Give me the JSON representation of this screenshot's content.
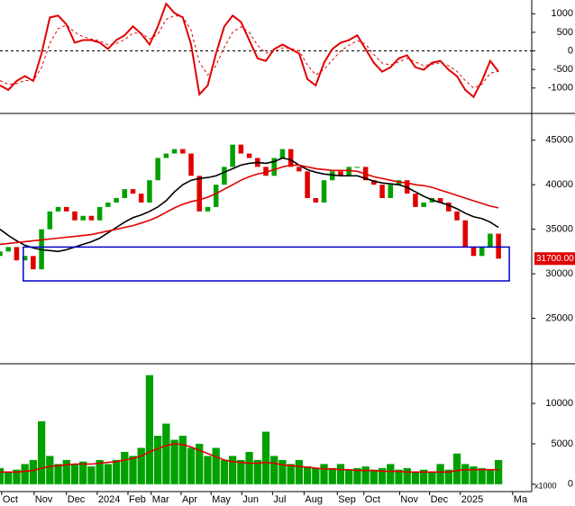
{
  "chart_data": [
    {
      "type": "line",
      "x": [
        0,
        1,
        2,
        3,
        4,
        5,
        6,
        7,
        8,
        9,
        10,
        11,
        12,
        13,
        14,
        15,
        16,
        17,
        18,
        19,
        20,
        21,
        22,
        23,
        24,
        25,
        26,
        27,
        28,
        29,
        30,
        31,
        32,
        33,
        34,
        35,
        36,
        37,
        38,
        39,
        40,
        41,
        42,
        43,
        44,
        45,
        46,
        47,
        48,
        49,
        50,
        51,
        52,
        53,
        54,
        55,
        56,
        57,
        58,
        59,
        60
      ],
      "series": [
        {
          "color": "#e00000",
          "style": "solid",
          "values": [
            -930,
            -1050,
            -810,
            -680,
            -810,
            -70,
            900,
            950,
            710,
            220,
            290,
            290,
            220,
            50,
            290,
            420,
            660,
            460,
            170,
            660,
            1270,
            1020,
            900,
            170,
            -1170,
            -930,
            -70,
            660,
            950,
            780,
            290,
            -200,
            -270,
            50,
            170,
            50,
            -70,
            -760,
            -930,
            -320,
            50,
            220,
            290,
            420,
            50,
            -320,
            -560,
            -440,
            -200,
            -120,
            -440,
            -510,
            -320,
            -270,
            -510,
            -680,
            -1050,
            -1240,
            -810,
            -270,
            -560
          ]
        },
        {
          "color": "#e00000",
          "style": "dashed",
          "values": [
            -800,
            -900,
            -880,
            -800,
            -800,
            -450,
            200,
            600,
            700,
            500,
            380,
            320,
            270,
            160,
            200,
            300,
            480,
            480,
            320,
            450,
            850,
            950,
            920,
            550,
            -300,
            -650,
            -400,
            100,
            500,
            650,
            500,
            150,
            -60,
            -20,
            80,
            70,
            0,
            -380,
            -650,
            -500,
            -250,
            0,
            150,
            280,
            180,
            -100,
            -330,
            -380,
            -300,
            -200,
            -300,
            -400,
            -360,
            -320,
            -400,
            -550,
            -800,
            -1000,
            -900,
            -600,
            -550
          ]
        }
      ],
      "xlim": [
        0,
        64
      ],
      "ylim": [
        -1660,
        1370
      ],
      "yticks": [
        1000,
        500,
        0,
        -500,
        -1000
      ],
      "reference_line": 0
    },
    {
      "type": "candlestick",
      "x": [
        0,
        1,
        2,
        3,
        4,
        5,
        6,
        7,
        8,
        9,
        10,
        11,
        12,
        13,
        14,
        15,
        16,
        17,
        18,
        19,
        20,
        21,
        22,
        23,
        24,
        25,
        26,
        27,
        28,
        29,
        30,
        31,
        32,
        33,
        34,
        35,
        36,
        37,
        38,
        39,
        40,
        41,
        42,
        43,
        44,
        45,
        46,
        47,
        48,
        49,
        50,
        51,
        52,
        53,
        54,
        55,
        56,
        57,
        58,
        59,
        60
      ],
      "open": [
        32000,
        32500,
        33000,
        31500,
        32000,
        30500,
        35000,
        37000,
        37500,
        37000,
        36000,
        36500,
        36000,
        37500,
        38000,
        38500,
        39500,
        39000,
        38000,
        40500,
        43000,
        43500,
        44000,
        43500,
        41000,
        37000,
        37500,
        40000,
        42000,
        44500,
        43500,
        43000,
        42000,
        41000,
        43000,
        44000,
        42000,
        41500,
        38500,
        38000,
        40500,
        41500,
        41000,
        42000,
        42000,
        40500,
        40000,
        38500,
        40000,
        40500,
        39000,
        37500,
        38000,
        38500,
        38000,
        37000,
        36000,
        33000,
        32000,
        33000,
        34500
      ],
      "close": [
        32500,
        33000,
        31500,
        32000,
        30500,
        35000,
        37000,
        37500,
        37000,
        36000,
        36500,
        36000,
        37500,
        38000,
        38500,
        39500,
        39000,
        38000,
        40500,
        43000,
        43500,
        44000,
        43500,
        41000,
        37000,
        37500,
        40000,
        42000,
        44500,
        43500,
        43000,
        42000,
        41000,
        43000,
        44000,
        42000,
        41500,
        38500,
        38000,
        40500,
        41500,
        41000,
        42000,
        42000,
        40500,
        40000,
        38500,
        40000,
        40500,
        39000,
        37500,
        38000,
        38500,
        38000,
        37000,
        36000,
        33000,
        32000,
        33000,
        34500,
        31700
      ],
      "up_color": "#00a000",
      "down_color": "#e00000",
      "series": [
        {
          "color": "#000000",
          "values": [
            35000,
            34300,
            33700,
            33200,
            32900,
            32700,
            32600,
            32500,
            32700,
            33000,
            33300,
            33600,
            34000,
            34600,
            35200,
            35800,
            36300,
            36600,
            37000,
            37500,
            38200,
            39200,
            40000,
            40500,
            40700,
            40800,
            41000,
            41400,
            41800,
            42200,
            42400,
            42500,
            42400,
            42600,
            43000,
            42800,
            42200,
            41700,
            41400,
            41200,
            41100,
            41000,
            41000,
            41000,
            40700,
            40400,
            40200,
            40100,
            40000,
            39700,
            39200,
            38700,
            38300,
            38000,
            37700,
            37300,
            36800,
            36400,
            36200,
            35800,
            35200
          ]
        },
        {
          "color": "#e00000",
          "values": [
            33300,
            33400,
            33500,
            33600,
            33700,
            33800,
            33900,
            34000,
            34100,
            34200,
            34300,
            34400,
            34600,
            34800,
            35000,
            35200,
            35400,
            35700,
            36000,
            36400,
            36900,
            37400,
            37800,
            38100,
            38300,
            38600,
            39000,
            39500,
            40000,
            40500,
            40900,
            41200,
            41400,
            41700,
            42000,
            42200,
            42200,
            42000,
            41800,
            41700,
            41600,
            41600,
            41600,
            41500,
            41200,
            40900,
            40700,
            40500,
            40300,
            40200,
            40000,
            39900,
            39700,
            39400,
            39100,
            38800,
            38500,
            38200,
            37900,
            37600,
            37400
          ]
        }
      ],
      "xlim": [
        0,
        64
      ],
      "ylim": [
        20100,
        47900
      ],
      "yticks": [
        45000,
        40000,
        35000,
        30000,
        25000
      ],
      "box": {
        "x": [
          2.8,
          61.3
        ],
        "y": [
          29200,
          33000
        ],
        "color": "#0000cc"
      },
      "last_label": {
        "value": 31700,
        "label": "31700.00"
      }
    },
    {
      "type": "bar",
      "x": [
        0,
        1,
        2,
        3,
        4,
        5,
        6,
        7,
        8,
        9,
        10,
        11,
        12,
        13,
        14,
        15,
        16,
        17,
        18,
        19,
        20,
        21,
        22,
        23,
        24,
        25,
        26,
        27,
        28,
        29,
        30,
        31,
        32,
        33,
        34,
        35,
        36,
        37,
        38,
        39,
        40,
        41,
        42,
        43,
        44,
        45,
        46,
        47,
        48,
        49,
        50,
        51,
        52,
        53,
        54,
        55,
        56,
        57,
        58,
        59,
        60
      ],
      "values": [
        2000,
        1500,
        1800,
        2500,
        3000,
        7800,
        3500,
        2500,
        3000,
        2500,
        2800,
        2200,
        3000,
        2500,
        3000,
        4000,
        3500,
        4500,
        13500,
        6000,
        7500,
        5500,
        6000,
        4500,
        5000,
        3500,
        4500,
        3000,
        3500,
        3000,
        4000,
        3000,
        6500,
        3500,
        3000,
        2500,
        3000,
        2200,
        2000,
        2500,
        2000,
        2500,
        1800,
        2000,
        2200,
        1800,
        2000,
        2500,
        1800,
        2000,
        1500,
        1800,
        1500,
        2500,
        1800,
        3800,
        2500,
        2200,
        2000,
        1800,
        3000
      ],
      "color": "#00a000",
      "series": [
        {
          "color": "#e00000",
          "values": [
            1500,
            1500,
            1500,
            1600,
            1700,
            2000,
            2200,
            2300,
            2400,
            2500,
            2500,
            2500,
            2600,
            2700,
            2800,
            3000,
            3200,
            3500,
            4000,
            4400,
            4800,
            5000,
            4900,
            4600,
            4200,
            3800,
            3400,
            3000,
            2800,
            2700,
            2600,
            2600,
            2700,
            2600,
            2400,
            2300,
            2200,
            2100,
            2000,
            1900,
            1900,
            1800,
            1800,
            1700,
            1700,
            1700,
            1600,
            1600,
            1600,
            1500,
            1500,
            1500,
            1500,
            1500,
            1500,
            1700,
            1800,
            1800,
            1800,
            1800,
            1800
          ]
        }
      ],
      "xlim": [
        0,
        64
      ],
      "ylim": [
        -800,
        14800
      ],
      "yticks": [
        0,
        5000,
        10000
      ],
      "y_unit_label": "x1000",
      "xticks": [
        {
          "value": 0.2,
          "label": "Oct"
        },
        {
          "value": 4.1,
          "label": "Nov"
        },
        {
          "value": 8,
          "label": "Dec"
        },
        {
          "value": 11.7,
          "label": "2024"
        },
        {
          "value": 15.4,
          "label": "Feb"
        },
        {
          "value": 18.2,
          "label": "Mar"
        },
        {
          "value": 21.8,
          "label": "Apr"
        },
        {
          "value": 25.4,
          "label": "May"
        },
        {
          "value": 29.1,
          "label": "Jun"
        },
        {
          "value": 32.8,
          "label": "Jul"
        },
        {
          "value": 36.6,
          "label": "Aug"
        },
        {
          "value": 40.6,
          "label": "Sep"
        },
        {
          "value": 43.8,
          "label": "Oct"
        },
        {
          "value": 48.1,
          "label": "Nov"
        },
        {
          "value": 51.7,
          "label": "Dec"
        },
        {
          "value": 55.4,
          "label": "2025"
        },
        {
          "value": 61.7,
          "label": "Ma"
        }
      ]
    }
  ]
}
